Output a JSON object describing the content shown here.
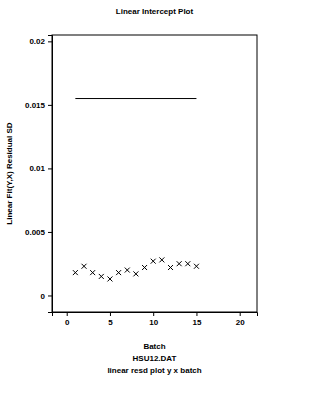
{
  "chart_data": {
    "type": "scatter",
    "title": "Linear Intercept Plot",
    "x_label": "Batch",
    "y_label": "Linear Fit(Y,X) Residual SD",
    "subtitle": "HSU12.DAT",
    "annotations": [
      "linear resd plot y x batch"
    ],
    "xlim": [
      -1.7,
      22
    ],
    "xticks": [
      0,
      5,
      10,
      15,
      20
    ],
    "ylim": [
      -0.0013,
      0.0205
    ],
    "yticks": [
      0,
      0.005,
      0.01,
      0.015,
      0.02
    ],
    "color": "#000000",
    "series": [
      {
        "type": "scatter",
        "marker": "x",
        "color": "#000000",
        "x": [
          1,
          2,
          3,
          4,
          5,
          6,
          7,
          8,
          9,
          10,
          11,
          12,
          13,
          14,
          15
        ],
        "values": [
          0.0018,
          0.0023,
          0.0018,
          0.0015,
          0.0013,
          0.0018,
          0.002,
          0.0017,
          0.0022,
          0.0027,
          0.0028,
          0.0022,
          0.0025,
          0.0025,
          0.0023
        ]
      },
      {
        "type": "line",
        "line_style": "solid",
        "color": "#000000",
        "x": [
          1,
          15
        ],
        "values": [
          0.0155,
          0.0155
        ]
      }
    ]
  }
}
